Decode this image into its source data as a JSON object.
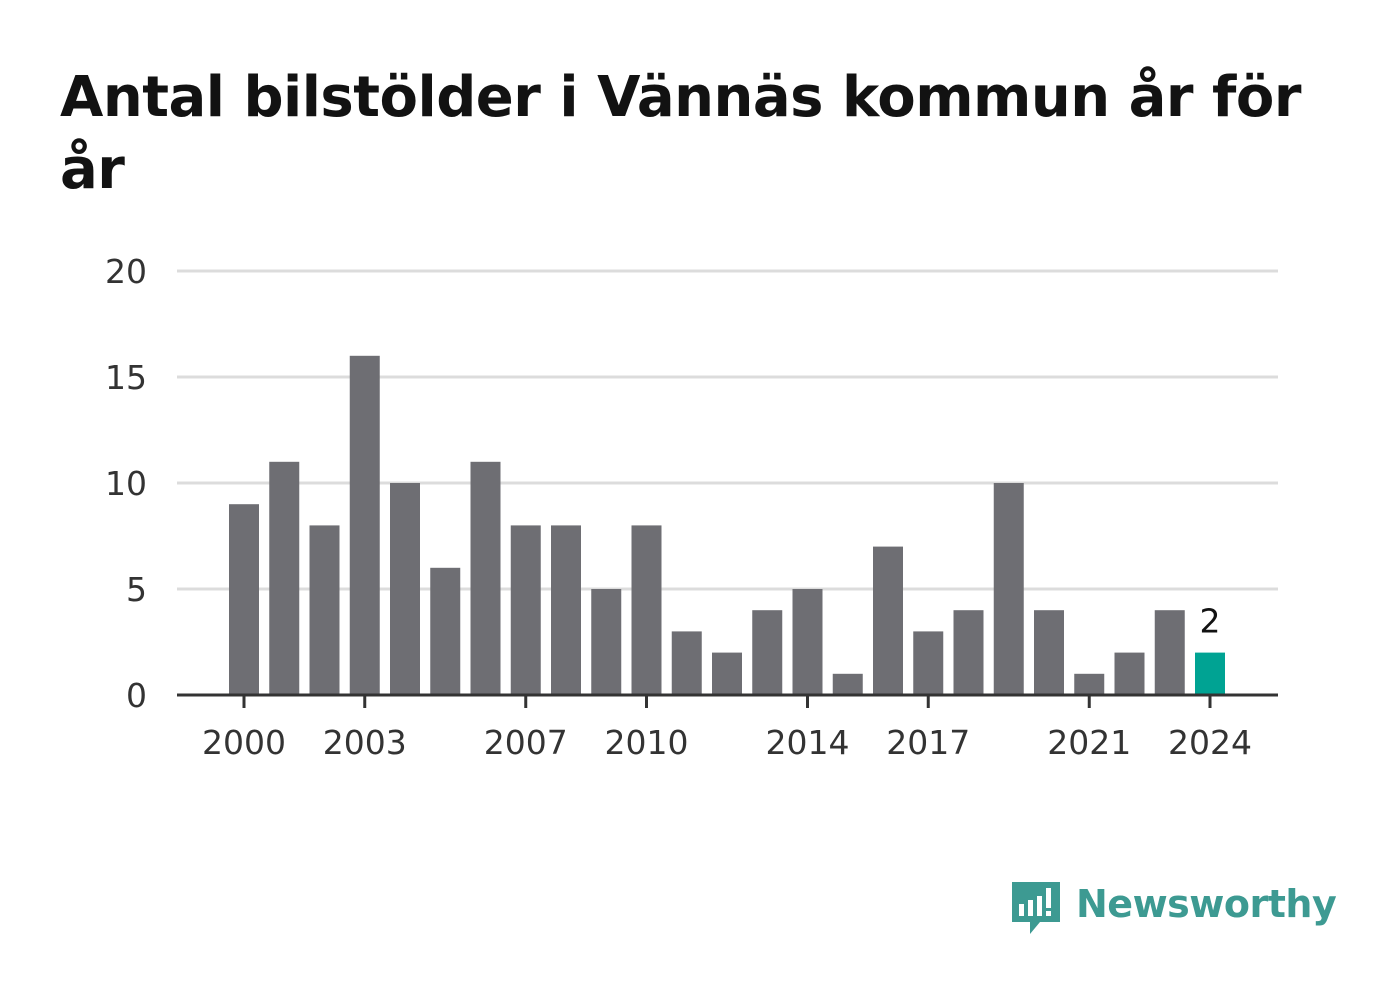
{
  "title": "Antal bilstölder i Vännäs kommun år för år",
  "brand": {
    "name": "Newsworthy",
    "icon": "newsworthy-logo-icon",
    "color": "#3d9a92"
  },
  "chart_data": {
    "type": "bar",
    "categories": [
      "2000",
      "2001",
      "2002",
      "2003",
      "2004",
      "2005",
      "2006",
      "2007",
      "2008",
      "2009",
      "2010",
      "2011",
      "2012",
      "2013",
      "2014",
      "2015",
      "2016",
      "2017",
      "2018",
      "2019",
      "2020",
      "2021",
      "2022",
      "2023",
      "2024"
    ],
    "values": [
      9,
      11,
      8,
      16,
      10,
      6,
      11,
      8,
      8,
      5,
      8,
      3,
      2,
      4,
      5,
      1,
      7,
      3,
      4,
      10,
      4,
      1,
      2,
      4,
      2
    ],
    "ylim": [
      0,
      20
    ],
    "yticks": [
      0,
      5,
      10,
      15,
      20
    ],
    "xtick_labels": [
      "2000",
      "2003",
      "2007",
      "2010",
      "2014",
      "2017",
      "2021",
      "2024"
    ],
    "highlight_index": 24,
    "highlight_label": "2",
    "bar_color": "#6e6e73",
    "highlight_color": "#00a393",
    "grid": true,
    "grid_color": "#dcdcdc",
    "xlabel": "",
    "ylabel": ""
  }
}
